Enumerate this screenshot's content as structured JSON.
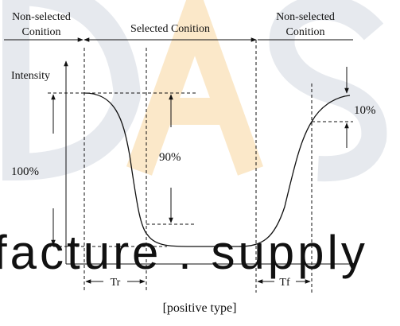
{
  "watermark": {
    "text": "facture . supply",
    "colors": {
      "grey": "#dfe3e8",
      "orange": "#fbe7c6"
    }
  },
  "labels": {
    "non_selected_left_line1": "Non-selected",
    "non_selected_left_line2": "Conition",
    "selected": "Selected Conition",
    "non_selected_right_line1": "Non-selected",
    "non_selected_right_line2": "Conition",
    "y_axis": "Intensity",
    "pct_100": "100%",
    "pct_90": "90%",
    "pct_10": "10%",
    "tr": "Tr",
    "tf": "Tf",
    "caption": "[positive type]"
  },
  "colors": {
    "line": "#111111"
  }
}
